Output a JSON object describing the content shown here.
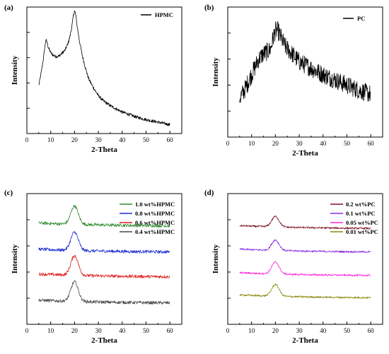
{
  "chart_data": [
    {
      "panel": "(a)",
      "type": "line",
      "xlabel": "2-Theta",
      "ylabel": "Intensity",
      "xlim": [
        0,
        65
      ],
      "x_ticks": [
        0,
        10,
        20,
        30,
        40,
        50,
        60
      ],
      "y_ticks_shown": false,
      "legend_position": "top-right",
      "series": [
        {
          "name": "HPMC",
          "color": "#000000",
          "noise": 0.012,
          "x": [
            5,
            6,
            7,
            7.5,
            8,
            8.5,
            9,
            10,
            11,
            12,
            13,
            14,
            15,
            16,
            17,
            18,
            19,
            19.5,
            20,
            20.5,
            21,
            22,
            23,
            24,
            25,
            26,
            28,
            30,
            32,
            35,
            38,
            40,
            43,
            46,
            50,
            55,
            60
          ],
          "y": [
            0.38,
            0.48,
            0.6,
            0.68,
            0.74,
            0.72,
            0.68,
            0.64,
            0.62,
            0.61,
            0.61,
            0.62,
            0.64,
            0.66,
            0.7,
            0.76,
            0.86,
            0.93,
            0.97,
            0.94,
            0.86,
            0.74,
            0.64,
            0.56,
            0.49,
            0.43,
            0.36,
            0.3,
            0.26,
            0.22,
            0.19,
            0.17,
            0.15,
            0.13,
            0.11,
            0.09,
            0.07
          ]
        }
      ]
    },
    {
      "panel": "(b)",
      "type": "line",
      "xlabel": "2-Theta",
      "ylabel": "Intensity",
      "xlim": [
        0,
        65
      ],
      "x_ticks": [
        0,
        10,
        20,
        30,
        40,
        50,
        60
      ],
      "y_ticks_shown": false,
      "legend_position": "top-right",
      "series": [
        {
          "name": "PC",
          "color": "#000000",
          "noise": 0.07,
          "x": [
            5,
            7,
            9,
            11,
            13,
            15,
            17,
            18,
            19,
            20,
            21,
            22,
            23,
            24,
            26,
            28,
            30,
            33,
            36,
            40,
            45,
            50,
            55,
            60
          ],
          "y": [
            0.3,
            0.36,
            0.44,
            0.52,
            0.6,
            0.64,
            0.66,
            0.68,
            0.76,
            0.82,
            0.82,
            0.78,
            0.74,
            0.7,
            0.66,
            0.62,
            0.58,
            0.55,
            0.52,
            0.48,
            0.44,
            0.4,
            0.36,
            0.33
          ]
        }
      ]
    },
    {
      "panel": "(c)",
      "type": "line",
      "xlabel": "2-Theta",
      "ylabel": "Intensity",
      "xlim": [
        0,
        65
      ],
      "x_ticks": [
        0,
        10,
        20,
        30,
        40,
        50,
        60
      ],
      "y_ticks_shown": false,
      "legend_position": "top-right",
      "series": [
        {
          "name": "1.0 wt%HPMC",
          "color": "#2e8b2e",
          "offset": 0.75,
          "peak": 0.14,
          "noise": 0.012
        },
        {
          "name": "0.8 wt%HPMC",
          "color": "#1f2fd0",
          "offset": 0.55,
          "peak": 0.14,
          "noise": 0.012
        },
        {
          "name": "0.6 wt%HPMC",
          "color": "#e01b1b",
          "offset": 0.36,
          "peak": 0.15,
          "noise": 0.012
        },
        {
          "name": "0.4 wt%HPMC",
          "color": "#4a4a4a",
          "offset": 0.16,
          "peak": 0.15,
          "noise": 0.012
        }
      ]
    },
    {
      "panel": "(d)",
      "type": "line",
      "xlabel": "2-Theta",
      "ylabel": "Intensity",
      "xlim": [
        0,
        65
      ],
      "x_ticks": [
        0,
        10,
        20,
        30,
        40,
        50,
        60
      ],
      "y_ticks_shown": false,
      "legend_position": "top-right",
      "series": [
        {
          "name": "0.2 wt%PC",
          "color": "#7a1420",
          "offset": 0.73,
          "peak": 0.08,
          "noise": 0.007
        },
        {
          "name": "0.1 wt%PC",
          "color": "#8a2be2",
          "offset": 0.55,
          "peak": 0.08,
          "noise": 0.007
        },
        {
          "name": "0.05 wt%PC",
          "color": "#ff22dd",
          "offset": 0.37,
          "peak": 0.09,
          "noise": 0.007
        },
        {
          "name": "0.01 wt%PC",
          "color": "#8a8a12",
          "offset": 0.2,
          "peak": 0.09,
          "noise": 0.007
        }
      ]
    }
  ]
}
